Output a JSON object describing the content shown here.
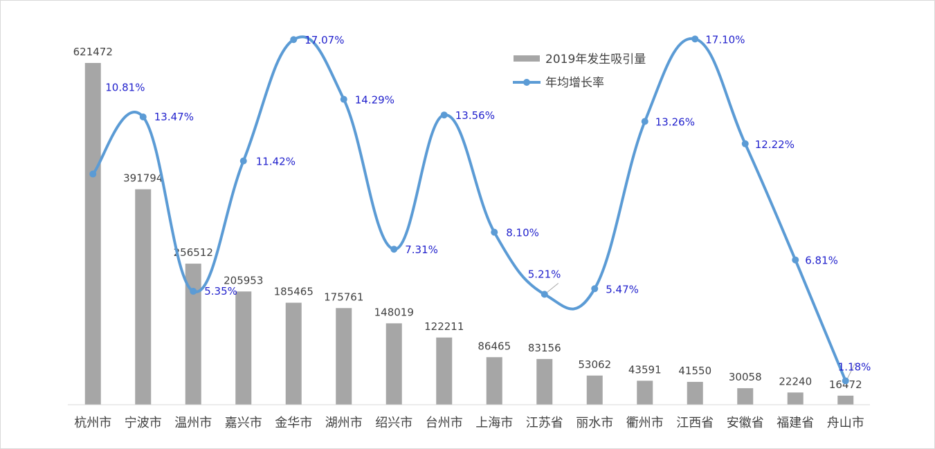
{
  "chart_data": {
    "type": "bar",
    "categories": [
      "杭州市",
      "宁波市",
      "温州市",
      "嘉兴市",
      "金华市",
      "湖州市",
      "绍兴市",
      "台州市",
      "上海市",
      "江苏省",
      "丽水市",
      "衢州市",
      "江西省",
      "安徽省",
      "福建省",
      "舟山市"
    ],
    "series": [
      {
        "name": "2019年发生吸引量",
        "type": "bar",
        "values": [
          621472,
          391794,
          256512,
          205953,
          185465,
          175761,
          148019,
          122211,
          86465,
          83156,
          53062,
          43591,
          41550,
          30058,
          22240,
          16472
        ],
        "labels": [
          "621472",
          "391794",
          "256512",
          "205953",
          "185465",
          "175761",
          "148019",
          "122211",
          "86465",
          "83156",
          "53062",
          "43591",
          "41550",
          "30058",
          "22240",
          "16472"
        ],
        "color": "#a6a6a6"
      },
      {
        "name": "年均增长率",
        "type": "line",
        "smooth": true,
        "values": [
          10.81,
          13.47,
          5.35,
          11.42,
          17.07,
          14.29,
          7.31,
          13.56,
          8.1,
          5.21,
          5.47,
          13.26,
          17.1,
          12.22,
          6.81,
          1.18
        ],
        "labels": [
          "10.81%",
          "13.47%",
          "5.35%",
          "11.42%",
          "17.07%",
          "14.29%",
          "7.31%",
          "13.56%",
          "8.10%",
          "5.21%",
          "5.47%",
          "13.26%",
          "17.10%",
          "12.22%",
          "6.81%",
          "1.18%"
        ],
        "color": "#5b9bd5",
        "label_color": "#1f1fcc"
      }
    ],
    "legend_position": "top-right",
    "grid": false
  }
}
